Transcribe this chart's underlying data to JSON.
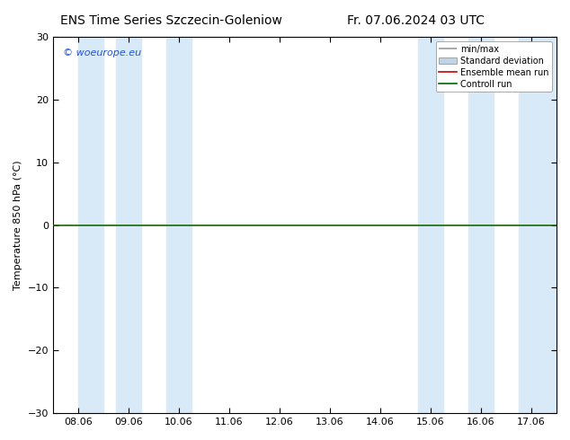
{
  "title_left": "ENS Time Series Szczecin-Goleniow",
  "title_right": "Fr. 07.06.2024 03 UTC",
  "ylabel": "Temperature 850 hPa (°C)",
  "ylim": [
    -30,
    30
  ],
  "yticks": [
    -30,
    -20,
    -10,
    0,
    10,
    20,
    30
  ],
  "xtick_labels": [
    "08.06",
    "09.06",
    "10.06",
    "11.06",
    "12.06",
    "13.06",
    "14.06",
    "15.06",
    "16.06",
    "17.06"
  ],
  "xtick_positions": [
    0,
    1,
    2,
    3,
    4,
    5,
    6,
    7,
    8,
    9
  ],
  "shaded_bands": [
    [
      0.0,
      0.5
    ],
    [
      0.75,
      1.25
    ],
    [
      1.75,
      2.25
    ],
    [
      6.75,
      7.25
    ],
    [
      7.75,
      8.25
    ],
    [
      8.75,
      9.5
    ]
  ],
  "shade_color": "#d8eaf8",
  "watermark": "© woeurope.eu",
  "legend_items": [
    "min/max",
    "Standard deviation",
    "Ensemble mean run",
    "Controll run"
  ],
  "legend_colors_line": [
    "#aaaaaa",
    "#bbccdd",
    "#cc0000",
    "#006600"
  ],
  "background_color": "#ffffff",
  "plot_bg_color": "#ffffff",
  "title_fontsize": 10,
  "tick_fontsize": 8,
  "ylabel_fontsize": 8,
  "zero_line_color": "#1a6600",
  "border_color": "#000000"
}
